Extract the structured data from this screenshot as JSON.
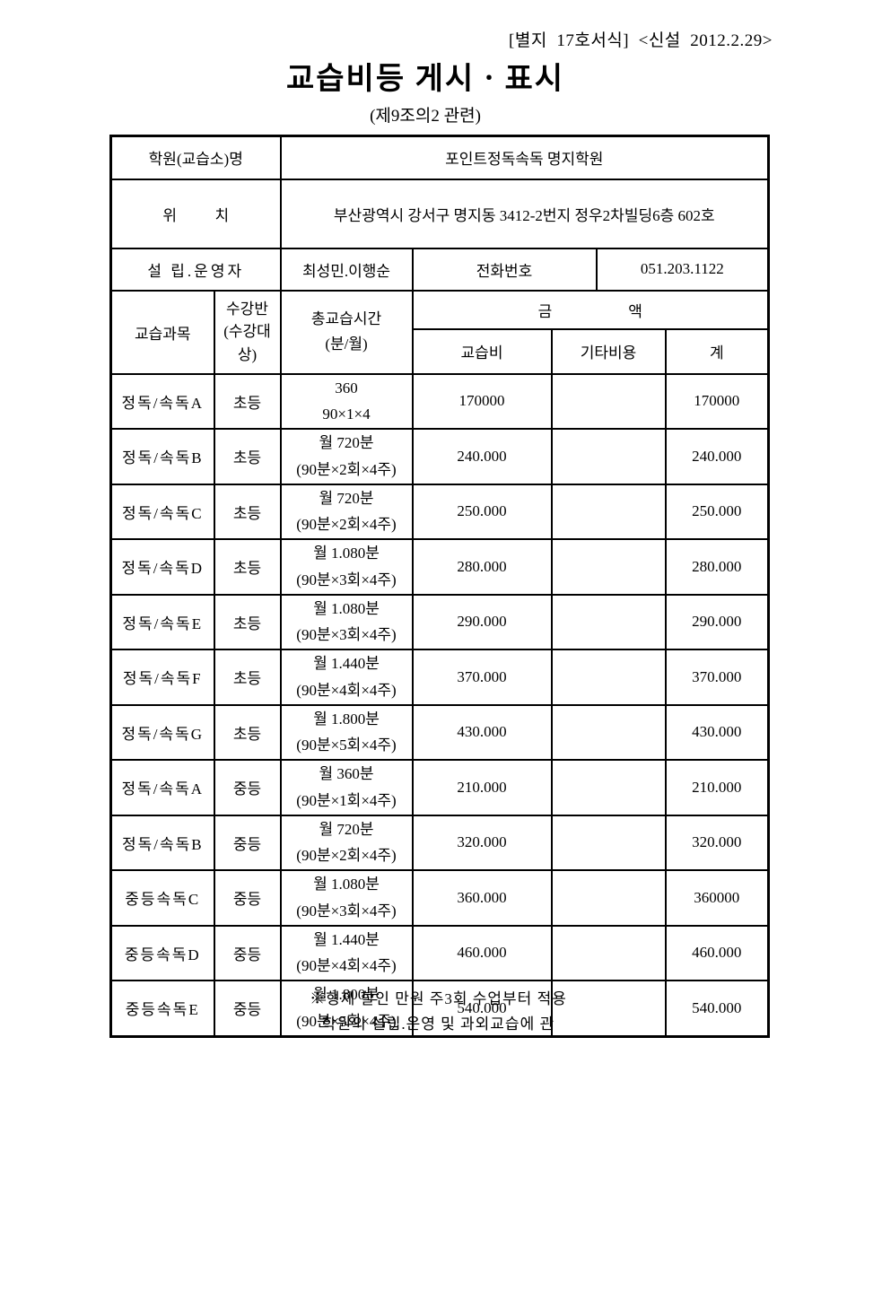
{
  "page": {
    "form_ref": "[별지  17호서식]  <신설  2012.2.29>",
    "title": "교습비등  게시ㆍ표시",
    "subtitle": "(제9조의2  관련)"
  },
  "info": {
    "academy_name_label": "학원(교습소)명",
    "academy_name_value": "포인트정독속독  명지학원",
    "location_label": "위          치",
    "location_value": "부산광역시  강서구  명지동  3412-2번지  정우2차빌딩6층  602호",
    "founder_label": "설 립.운영자",
    "founder_value": "최성민.이행순",
    "phone_label": "전화번호",
    "phone_value": "051.203.1122"
  },
  "fee_table": {
    "headers": {
      "subject": "교습과목",
      "grade": "수강반 (수강대상)",
      "total_time_line1": "총교습시간",
      "total_time_line2": "(분/월)",
      "amount": "금                    액",
      "tuition": "교습비",
      "other": "기타비용",
      "total": "계"
    },
    "rows": [
      {
        "subject": "정독/속독A",
        "grade": "초등",
        "time1": "360",
        "time2": "90×1×4",
        "tuition": "170000",
        "other": "",
        "total": "170000"
      },
      {
        "subject": "정독/속독B",
        "grade": "초등",
        "time1": "월 720분",
        "time2": "(90분×2회×4주)",
        "tuition": "240.000",
        "other": "",
        "total": "240.000"
      },
      {
        "subject": "정독/속독C",
        "grade": "초등",
        "time1": "월 720분",
        "time2": "(90분×2회×4주)",
        "tuition": "250.000",
        "other": "",
        "total": "250.000"
      },
      {
        "subject": "정독/속독D",
        "grade": "초등",
        "time1": "월 1.080분",
        "time2": "(90분×3회×4주)",
        "tuition": "280.000",
        "other": "",
        "total": "280.000"
      },
      {
        "subject": "정독/속독E",
        "grade": "초등",
        "time1": "월 1.080분",
        "time2": "(90분×3회×4주)",
        "tuition": "290.000",
        "other": "",
        "total": "290.000"
      },
      {
        "subject": "정독/속독F",
        "grade": "초등",
        "time1": "월 1.440분",
        "time2": "(90분×4회×4주)",
        "tuition": "370.000",
        "other": "",
        "total": "370.000"
      },
      {
        "subject": "정독/속독G",
        "grade": "초등",
        "time1": "월 1.800분",
        "time2": "(90분×5회×4주)",
        "tuition": "430.000",
        "other": "",
        "total": "430.000"
      },
      {
        "subject": "정독/속독A",
        "grade": "중등",
        "time1": "월 360분",
        "time2": "(90분×1회×4주)",
        "tuition": "210.000",
        "other": "",
        "total": "210.000"
      },
      {
        "subject": "정독/속독B",
        "grade": "중등",
        "time1": "월 720분",
        "time2": "(90분×2회×4주)",
        "tuition": "320.000",
        "other": "",
        "total": "320.000"
      },
      {
        "subject": "중등속독C",
        "grade": "중등",
        "time1": "월 1.080분",
        "time2": "(90분×3회×4주)",
        "tuition": "360.000",
        "other": "",
        "total": "360000"
      },
      {
        "subject": "중등속독D",
        "grade": "중등",
        "time1": "월 1.440분",
        "time2": "(90분×4회×4주)",
        "tuition": "460.000",
        "other": "",
        "total": "460.000"
      },
      {
        "subject": "중등속독E",
        "grade": "중등",
        "time1": "월 1.800분",
        "time2": "(90분×5회×4주)",
        "tuition": "540.000",
        "other": "",
        "total": "540.000"
      }
    ]
  },
  "footer": {
    "line1": "※형제 할인 만원 주3회 수업부터 적용",
    "line2": "학원의 설립.운영 및 과외교습에 관"
  }
}
